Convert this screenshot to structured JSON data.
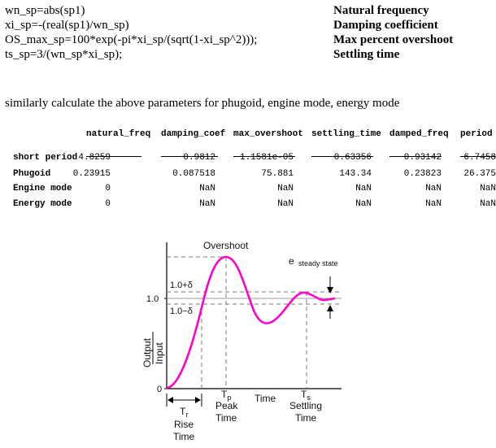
{
  "code": [
    {
      "code": "wn_sp=abs(sp1)",
      "desc": "Natural frequency"
    },
    {
      "code": "xi_sp=-(real(sp1)/wn_sp)",
      "desc": "Damping coefficient"
    },
    {
      "code": "OS_max_sp=100*exp(-pi*xi_sp/(sqrt(1-xi_sp^2)));",
      "desc": "Max percent overshoot"
    },
    {
      "code": "ts_sp=3/(wn_sp*xi_sp);",
      "desc": "Settling time"
    }
  ],
  "note": "similarly calculate the above parameters for phugoid, engine mode, energy mode",
  "table": {
    "headers": [
      "natural_freq",
      "damping_coef",
      "max_overshoot",
      "settling_time",
      "damped_freq",
      "period"
    ],
    "rows": [
      {
        "label": "short period",
        "values": [
          "4.8259",
          "0.9812",
          "1.1581e-05",
          "0.63356",
          "0.93142",
          "6.7458"
        ]
      },
      {
        "label": "Phugoid",
        "values": [
          "0.23915",
          "0.087518",
          "75.881",
          "143.34",
          "0.23823",
          "26.375"
        ]
      },
      {
        "label": "Engine mode",
        "values": [
          "0",
          "NaN",
          "NaN",
          "NaN",
          "NaN",
          "NaN"
        ]
      },
      {
        "label": "Energy mode",
        "values": [
          "0",
          "NaN",
          "NaN",
          "NaN",
          "NaN",
          "NaN"
        ]
      }
    ]
  },
  "diagram": {
    "overshoot": "Overshoot",
    "e_sym": "e",
    "steady_state": "steady state",
    "upper_band": "1.0+δ",
    "one": "1.0",
    "lower_band": "1.0−δ",
    "y_top": "Output",
    "y_bottom": "Input",
    "zero": "0",
    "tp_sym": "T",
    "tp_sub": "p",
    "peak1": "Peak",
    "peak2": "Time",
    "time": "Time",
    "ts_sym": "T",
    "ts_sub": "s",
    "settling1": "Settling",
    "settling2": "Time",
    "tr_sym": "T",
    "tr_sub": "r",
    "rise1": "Rise",
    "rise2": "Time"
  }
}
